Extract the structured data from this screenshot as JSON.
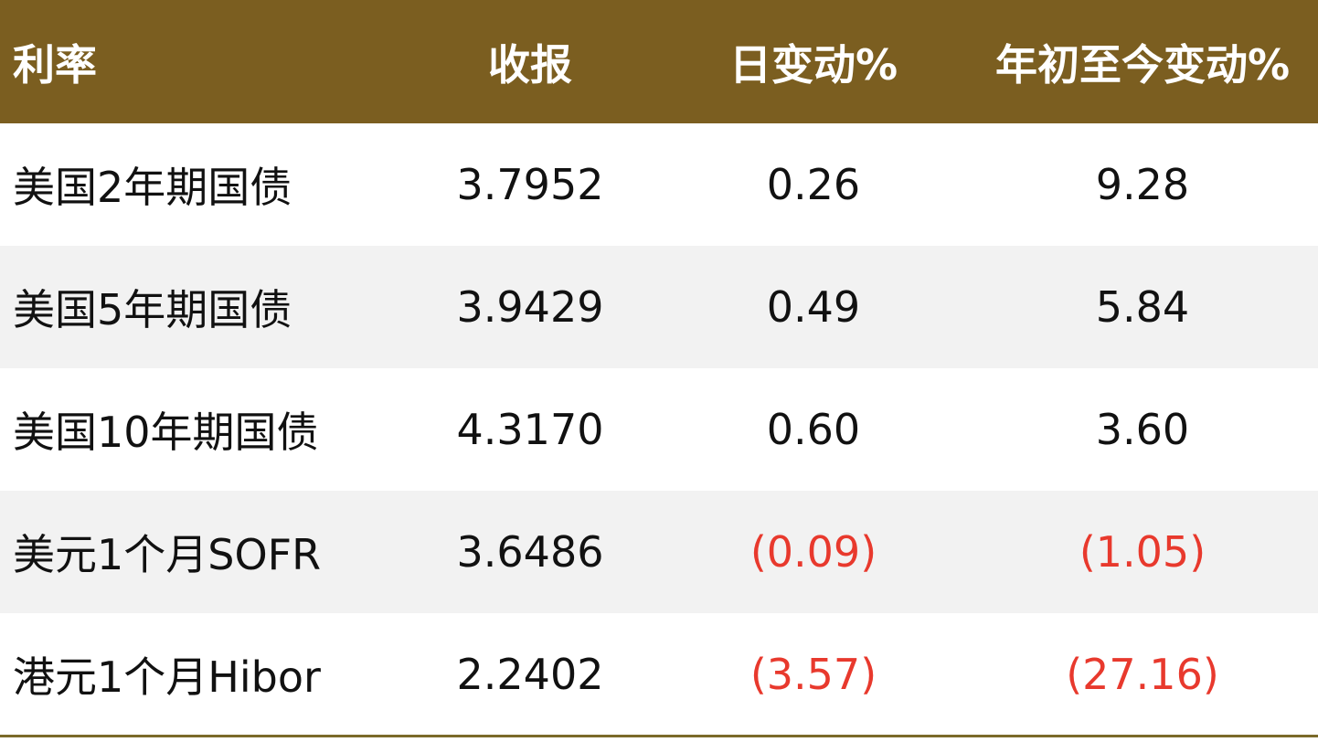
{
  "table": {
    "header": [
      "利率",
      "收报",
      "日变动%",
      "年初至今变动%"
    ],
    "rows": [
      [
        "美国2年期国债",
        "3.7952",
        "0.26",
        "9.28"
      ],
      [
        "美国5年期国债",
        "3.9429",
        "0.49",
        "5.84"
      ],
      [
        "美国10年期国债",
        "4.3170",
        "0.60",
        "3.60"
      ],
      [
        "美元1个月SOFR",
        "3.6486",
        "(0.09)",
        "(1.05)"
      ],
      [
        "港元1个月Hibor",
        "2.2402",
        "(3.57)",
        "(27.16)"
      ]
    ]
  }
}
